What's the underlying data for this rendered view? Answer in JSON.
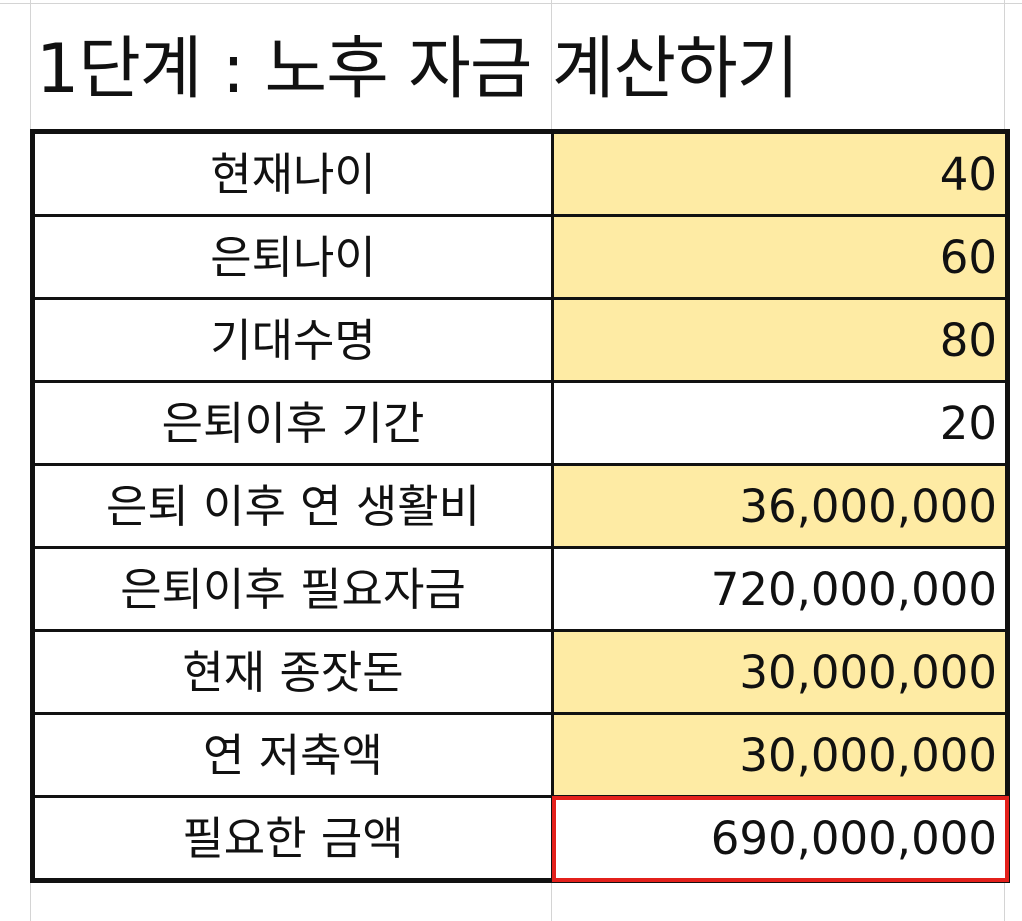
{
  "sheet": {
    "title": "1단계 : 노후 자금 계산하기",
    "rows": [
      {
        "label": "현재나이",
        "value": "40",
        "input": true
      },
      {
        "label": "은퇴나이",
        "value": "60",
        "input": true
      },
      {
        "label": "기대수명",
        "value": "80",
        "input": true
      },
      {
        "label": "은퇴이후 기간",
        "value": "20",
        "input": false
      },
      {
        "label": "은퇴 이후 연 생활비",
        "value": "36,000,000",
        "input": true
      },
      {
        "label": "은퇴이후 필요자금",
        "value": "720,000,000",
        "input": false
      },
      {
        "label": "현재 종잣돈",
        "value": "30,000,000",
        "input": true
      },
      {
        "label": "연 저축액",
        "value": "30,000,000",
        "input": true
      },
      {
        "label": "필요한 금액",
        "value": "690,000,000",
        "input": false
      }
    ],
    "selected_row": 8
  },
  "colors": {
    "input_fill": "#feeba4",
    "selection_border": "#e3201b",
    "border": "#111111",
    "gridline": "#d4d4d4"
  }
}
